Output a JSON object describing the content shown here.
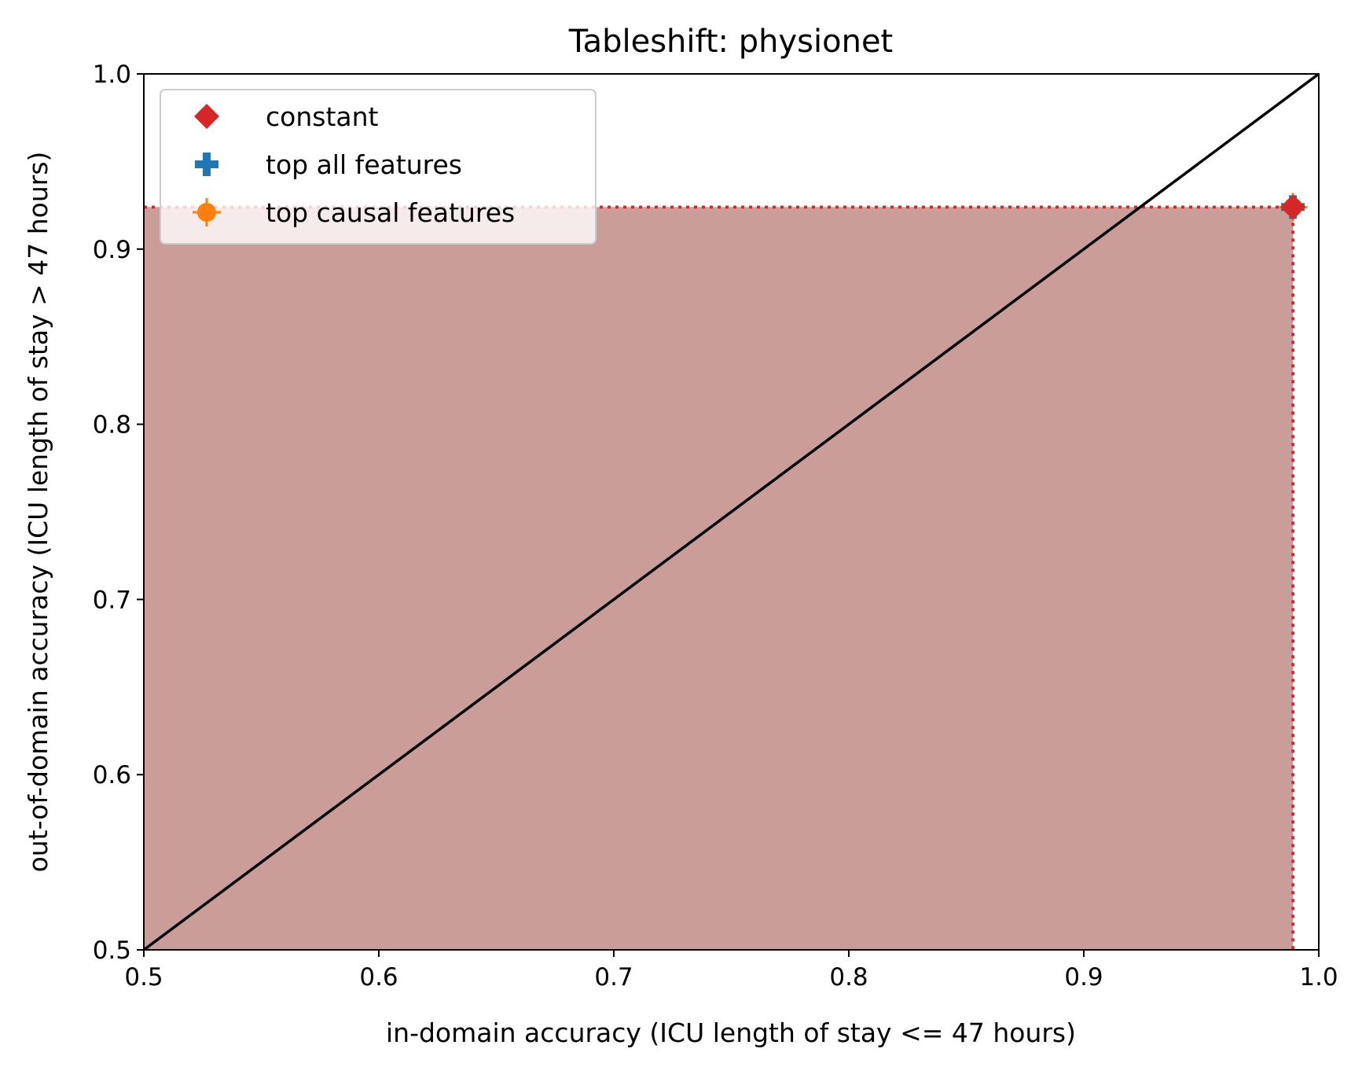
{
  "chart_data": {
    "type": "scatter",
    "title": "Tableshift: physionet",
    "xlabel": "in-domain accuracy (ICU length of stay <= 47 hours)",
    "ylabel": "out-of-domain accuracy (ICU length of stay > 47 hours)",
    "xlim": [
      0.5,
      1.0
    ],
    "ylim": [
      0.5,
      1.0
    ],
    "xticks": [
      "0.5",
      "0.6",
      "0.7",
      "0.8",
      "0.9",
      "1.0"
    ],
    "yticks": [
      "0.5",
      "0.6",
      "0.7",
      "0.8",
      "0.9",
      "1.0"
    ],
    "grid": false,
    "legend_position": "upper-left",
    "diagonal": {
      "from": [
        0.5,
        0.5
      ],
      "to": [
        1.0,
        1.0
      ],
      "color": "#000000"
    },
    "series": [
      {
        "name": "constant",
        "marker": "diamond",
        "color": "#d62728",
        "x": 0.989,
        "y": 0.924,
        "fill_color": "#d62728"
      },
      {
        "name": "top all features",
        "marker": "plus",
        "color": "#1f77b4",
        "x": 0.989,
        "y": 0.924,
        "fill_color": "#1f77b4"
      },
      {
        "name": "top causal features",
        "marker": "circle",
        "color": "#ff7f0e",
        "x": 0.989,
        "y": 0.924,
        "fill_color": "#ff7f0e"
      }
    ]
  }
}
